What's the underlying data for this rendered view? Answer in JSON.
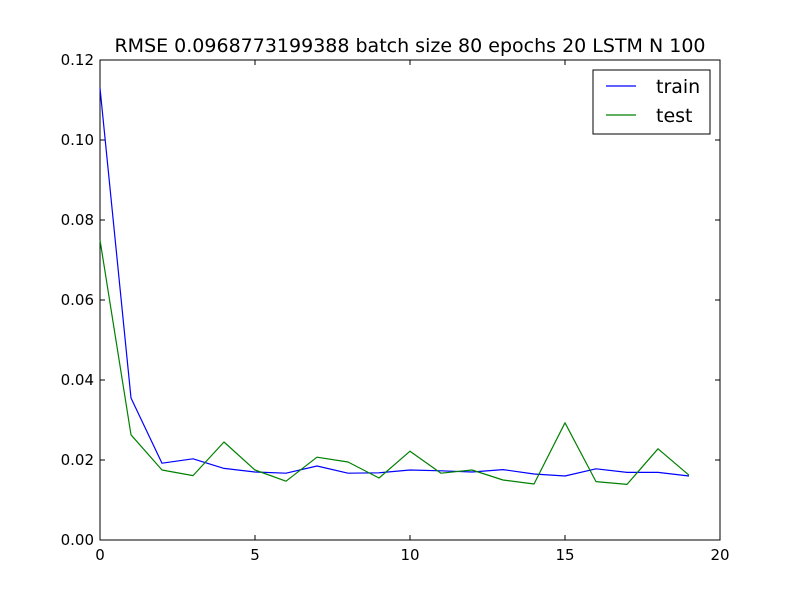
{
  "chart_data": {
    "type": "line",
    "title": "RMSE 0.0968773199388 batch size 80 epochs 20 LSTM N 100",
    "xlabel": "",
    "ylabel": "",
    "xlim": [
      0,
      20
    ],
    "ylim": [
      0,
      0.12
    ],
    "x_ticks": [
      0,
      5,
      10,
      15,
      20
    ],
    "x_tick_labels": [
      "0",
      "5",
      "10",
      "15",
      "20"
    ],
    "y_ticks": [
      0,
      0.02,
      0.04,
      0.06,
      0.08,
      0.1,
      0.12
    ],
    "y_tick_labels": [
      "0.00",
      "0.02",
      "0.04",
      "0.06",
      "0.08",
      "0.10",
      "0.12"
    ],
    "grid": false,
    "legend_position": "top-right",
    "x": [
      0,
      1,
      2,
      3,
      4,
      5,
      6,
      7,
      8,
      9,
      10,
      11,
      12,
      13,
      14,
      15,
      16,
      17,
      18,
      19
    ],
    "series": [
      {
        "name": "train",
        "color": "#0000ff",
        "values": [
          0.113,
          0.0355,
          0.0192,
          0.0203,
          0.0179,
          0.017,
          0.0167,
          0.0185,
          0.0167,
          0.0168,
          0.0175,
          0.0173,
          0.017,
          0.0176,
          0.0165,
          0.016,
          0.0178,
          0.0169,
          0.0169,
          0.016
        ]
      },
      {
        "name": "test",
        "color": "#008000",
        "values": [
          0.075,
          0.0263,
          0.0175,
          0.0161,
          0.0245,
          0.0175,
          0.0147,
          0.0207,
          0.0195,
          0.0155,
          0.0222,
          0.0167,
          0.0175,
          0.015,
          0.014,
          0.0293,
          0.0146,
          0.0139,
          0.0228,
          0.0162
        ]
      }
    ]
  }
}
